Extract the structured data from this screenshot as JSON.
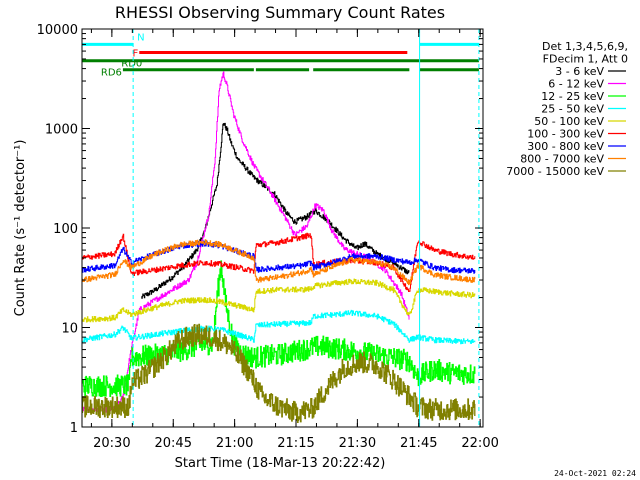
{
  "chart_data": {
    "type": "line",
    "title": "RHESSI Observing Summary Count Rates",
    "xlabel": "Start Time (18-Mar-13 20:22:42)",
    "ylabel": "Count Rate (s⁻¹ detector⁻¹)",
    "x_unit": "minutes after 20:22:42",
    "xlim": [
      0,
      98
    ],
    "ylim": [
      1,
      10000
    ],
    "yscale": "log",
    "x_ticks": [
      {
        "x": 7.3,
        "label": "20:30"
      },
      {
        "x": 22.3,
        "label": "20:45"
      },
      {
        "x": 37.3,
        "label": "21:00"
      },
      {
        "x": 52.3,
        "label": "21:15"
      },
      {
        "x": 67.3,
        "label": "21:30"
      },
      {
        "x": 82.3,
        "label": "21:45"
      },
      {
        "x": 97.3,
        "label": "22:00"
      }
    ],
    "y_ticks": [
      {
        "y": 1,
        "label": "1"
      },
      {
        "y": 10,
        "label": "10"
      },
      {
        "y": 100,
        "label": "100"
      },
      {
        "y": 1000,
        "label": "1000"
      },
      {
        "y": 10000,
        "label": "10000"
      }
    ],
    "legend": {
      "title_lines": [
        "Det 1,3,4,5,6,9,",
        "FDecim 1, Att 0"
      ],
      "placement": "right"
    },
    "series": [
      {
        "name": "3 - 6 keV",
        "color": "#000000",
        "x": [
          14.5,
          18,
          22,
          25,
          28,
          30,
          33,
          34.5,
          35.5,
          36.5,
          38,
          42,
          47,
          50,
          52,
          55,
          57,
          60,
          64,
          67,
          69,
          72,
          76,
          80
        ],
        "values": [
          20,
          24,
          32,
          42,
          60,
          95,
          280,
          1150,
          950,
          700,
          500,
          320,
          220,
          140,
          115,
          130,
          150,
          120,
          78,
          62,
          70,
          55,
          45,
          35
        ]
      },
      {
        "name": "6 - 12 keV",
        "color": "#ff00ff",
        "x": [
          0,
          8,
          10,
          12,
          14,
          18,
          22,
          26,
          28,
          31,
          32.5,
          33.5,
          34.5,
          35.5,
          37,
          39,
          42,
          46,
          50,
          52,
          55,
          57,
          59,
          61,
          64,
          67,
          70,
          74,
          78,
          80
        ],
        "values": [
          1.5,
          1.5,
          2,
          6,
          15,
          19,
          24,
          30,
          45,
          140,
          500,
          2500,
          3600,
          2600,
          1400,
          800,
          420,
          230,
          120,
          85,
          105,
          170,
          150,
          95,
          62,
          55,
          50,
          38,
          22,
          12
        ]
      },
      {
        "name": "12 - 25 keV",
        "color": "#00ff00",
        "x": [
          0,
          11.5,
          12,
          22,
          28,
          32,
          33,
          34,
          35,
          37,
          39,
          42,
          48,
          54,
          58,
          64,
          70,
          76,
          80,
          82,
          86,
          90,
          96
        ],
        "values": [
          2.6,
          2.6,
          5,
          5.5,
          6.5,
          7,
          20,
          45,
          18,
          7,
          5.5,
          5,
          5.3,
          6,
          6.5,
          6,
          5.5,
          5,
          4.6,
          3.2,
          3.8,
          3.5,
          3.4
        ]
      },
      {
        "name": "25 - 50 keV",
        "color": "#00ffff",
        "x": [
          0,
          8,
          10,
          12,
          18,
          24,
          30,
          34,
          38,
          42,
          42.5,
          48,
          54,
          56,
          56.5,
          62,
          66,
          72,
          76,
          80,
          82,
          86,
          90,
          96
        ],
        "values": [
          7.5,
          8.5,
          10,
          7.8,
          8.5,
          9.2,
          9.8,
          9.5,
          8.5,
          7.5,
          10.5,
          10.8,
          11,
          11.2,
          13,
          13.5,
          14,
          13,
          11,
          7.5,
          8,
          7.5,
          7.3,
          7.2
        ]
      },
      {
        "name": "50 - 100 keV",
        "color": "#d8d800",
        "x": [
          0,
          8,
          10,
          12,
          18,
          24,
          30,
          34,
          38,
          42,
          42.5,
          48,
          54,
          56,
          56.5,
          62,
          66,
          72,
          76,
          80,
          82,
          86,
          90,
          96
        ],
        "values": [
          12,
          12.5,
          15,
          13.5,
          16,
          18.5,
          19,
          18,
          16.5,
          15,
          23,
          24,
          24,
          24.5,
          26,
          28,
          29,
          28,
          24,
          13,
          24,
          23,
          22,
          21
        ]
      },
      {
        "name": "100 - 300 keV",
        "color": "#ff0000",
        "x": [
          0,
          8,
          10,
          12,
          18,
          24,
          30,
          34,
          38,
          42,
          42.5,
          48,
          52,
          56,
          56.5,
          62,
          66,
          72,
          76,
          80,
          82,
          86,
          90,
          96
        ],
        "values": [
          50,
          55,
          85,
          35,
          38,
          42,
          45,
          43,
          40,
          37,
          67,
          72,
          78,
          85,
          43,
          46,
          47,
          45,
          40,
          23,
          75,
          60,
          55,
          50
        ]
      },
      {
        "name": "300 - 800 keV",
        "color": "#0000ff",
        "x": [
          0,
          8,
          10,
          12,
          18,
          24,
          30,
          34,
          38,
          42,
          42.5,
          48,
          54,
          56,
          56.5,
          62,
          66,
          72,
          76,
          80,
          82,
          86,
          90,
          96
        ],
        "values": [
          38,
          42,
          62,
          45,
          55,
          66,
          70,
          66,
          58,
          52,
          38,
          40,
          42,
          45,
          40,
          46,
          52,
          52,
          48,
          45,
          48,
          40,
          38,
          37
        ]
      },
      {
        "name": "800 - 7000 keV",
        "color": "#ff8000",
        "x": [
          0,
          8,
          10,
          12,
          18,
          24,
          30,
          34,
          38,
          42,
          42.5,
          48,
          54,
          56,
          56.5,
          62,
          66,
          72,
          76,
          80,
          82,
          86,
          90,
          96
        ],
        "values": [
          30,
          34,
          48,
          40,
          55,
          68,
          72,
          68,
          58,
          50,
          30,
          32,
          36,
          39,
          34,
          42,
          48,
          45,
          40,
          28,
          42,
          34,
          32,
          30
        ]
      },
      {
        "name": "7000 - 15000 keV",
        "color": "#808000",
        "x": [
          0,
          11.5,
          12,
          16,
          20,
          24,
          28,
          32,
          36,
          40,
          44,
          48,
          52,
          56,
          60,
          64,
          68,
          72,
          76,
          80,
          82,
          86,
          90,
          96
        ],
        "values": [
          1.6,
          1.6,
          2.7,
          3.5,
          5,
          7.5,
          8.5,
          8,
          6.5,
          4,
          2,
          1.6,
          1.4,
          1.5,
          2.5,
          4,
          4.5,
          4.2,
          3,
          2,
          1.6,
          1.5,
          1.5,
          1.5
        ]
      }
    ],
    "state_bars": [
      {
        "label": "N",
        "color": "#00ffff",
        "y": 7000,
        "segments": [
          [
            0,
            12.5
          ],
          [
            82.5,
            97
          ]
        ]
      },
      {
        "label": "F",
        "color": "#ff0000",
        "y": 5800,
        "segments": [
          [
            14,
            79.5
          ]
        ]
      },
      {
        "label": "RD0",
        "color": "#007f00",
        "y": 4800,
        "segments": [
          [
            0,
            97
          ]
        ]
      },
      {
        "label": "RD6",
        "color": "#007f00",
        "y": 3900,
        "segments": [
          [
            10,
            42
          ],
          [
            42.5,
            55.5
          ],
          [
            56.5,
            80
          ],
          [
            82.5,
            97
          ]
        ]
      }
    ],
    "event_lines": [
      {
        "x": 12.5,
        "style": "dashed",
        "color": "#00ffff"
      },
      {
        "x": 82.5,
        "style": "solid",
        "color": "#00ffff"
      },
      {
        "x": 97,
        "style": "dashed",
        "color": "#00ffff"
      }
    ]
  },
  "footer": {
    "date_stamp": "24-Oct-2021 02:24"
  }
}
